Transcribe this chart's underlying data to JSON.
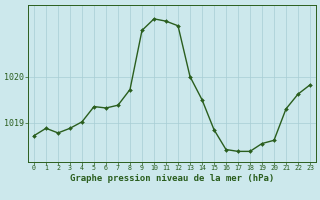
{
  "x": [
    0,
    1,
    2,
    3,
    4,
    5,
    6,
    7,
    8,
    9,
    10,
    11,
    12,
    13,
    14,
    15,
    16,
    17,
    18,
    19,
    20,
    21,
    22,
    23
  ],
  "y": [
    1018.72,
    1018.88,
    1018.78,
    1018.88,
    1019.02,
    1019.35,
    1019.32,
    1019.38,
    1019.72,
    1021.0,
    1021.25,
    1021.2,
    1021.1,
    1020.0,
    1019.5,
    1018.85,
    1018.42,
    1018.38,
    1018.38,
    1018.55,
    1018.62,
    1019.3,
    1019.62,
    1019.82
  ],
  "line_color": "#2a5e1e",
  "marker": "D",
  "marker_size": 2.0,
  "background_color": "#cce8ec",
  "grid_color": "#a8cdd4",
  "xlabel": "Graphe pression niveau de la mer (hPa)",
  "xlabel_fontsize": 6.5,
  "xlabel_color": "#2a5e1e",
  "ytick_labels": [
    "1019",
    "1020"
  ],
  "ytick_values": [
    1019.0,
    1020.0
  ],
  "ylim": [
    1018.15,
    1021.55
  ],
  "xlim": [
    -0.5,
    23.5
  ],
  "xtick_fontsize": 4.8,
  "ytick_fontsize": 6.0,
  "tick_color": "#2a5e1e",
  "line_width": 1.0
}
